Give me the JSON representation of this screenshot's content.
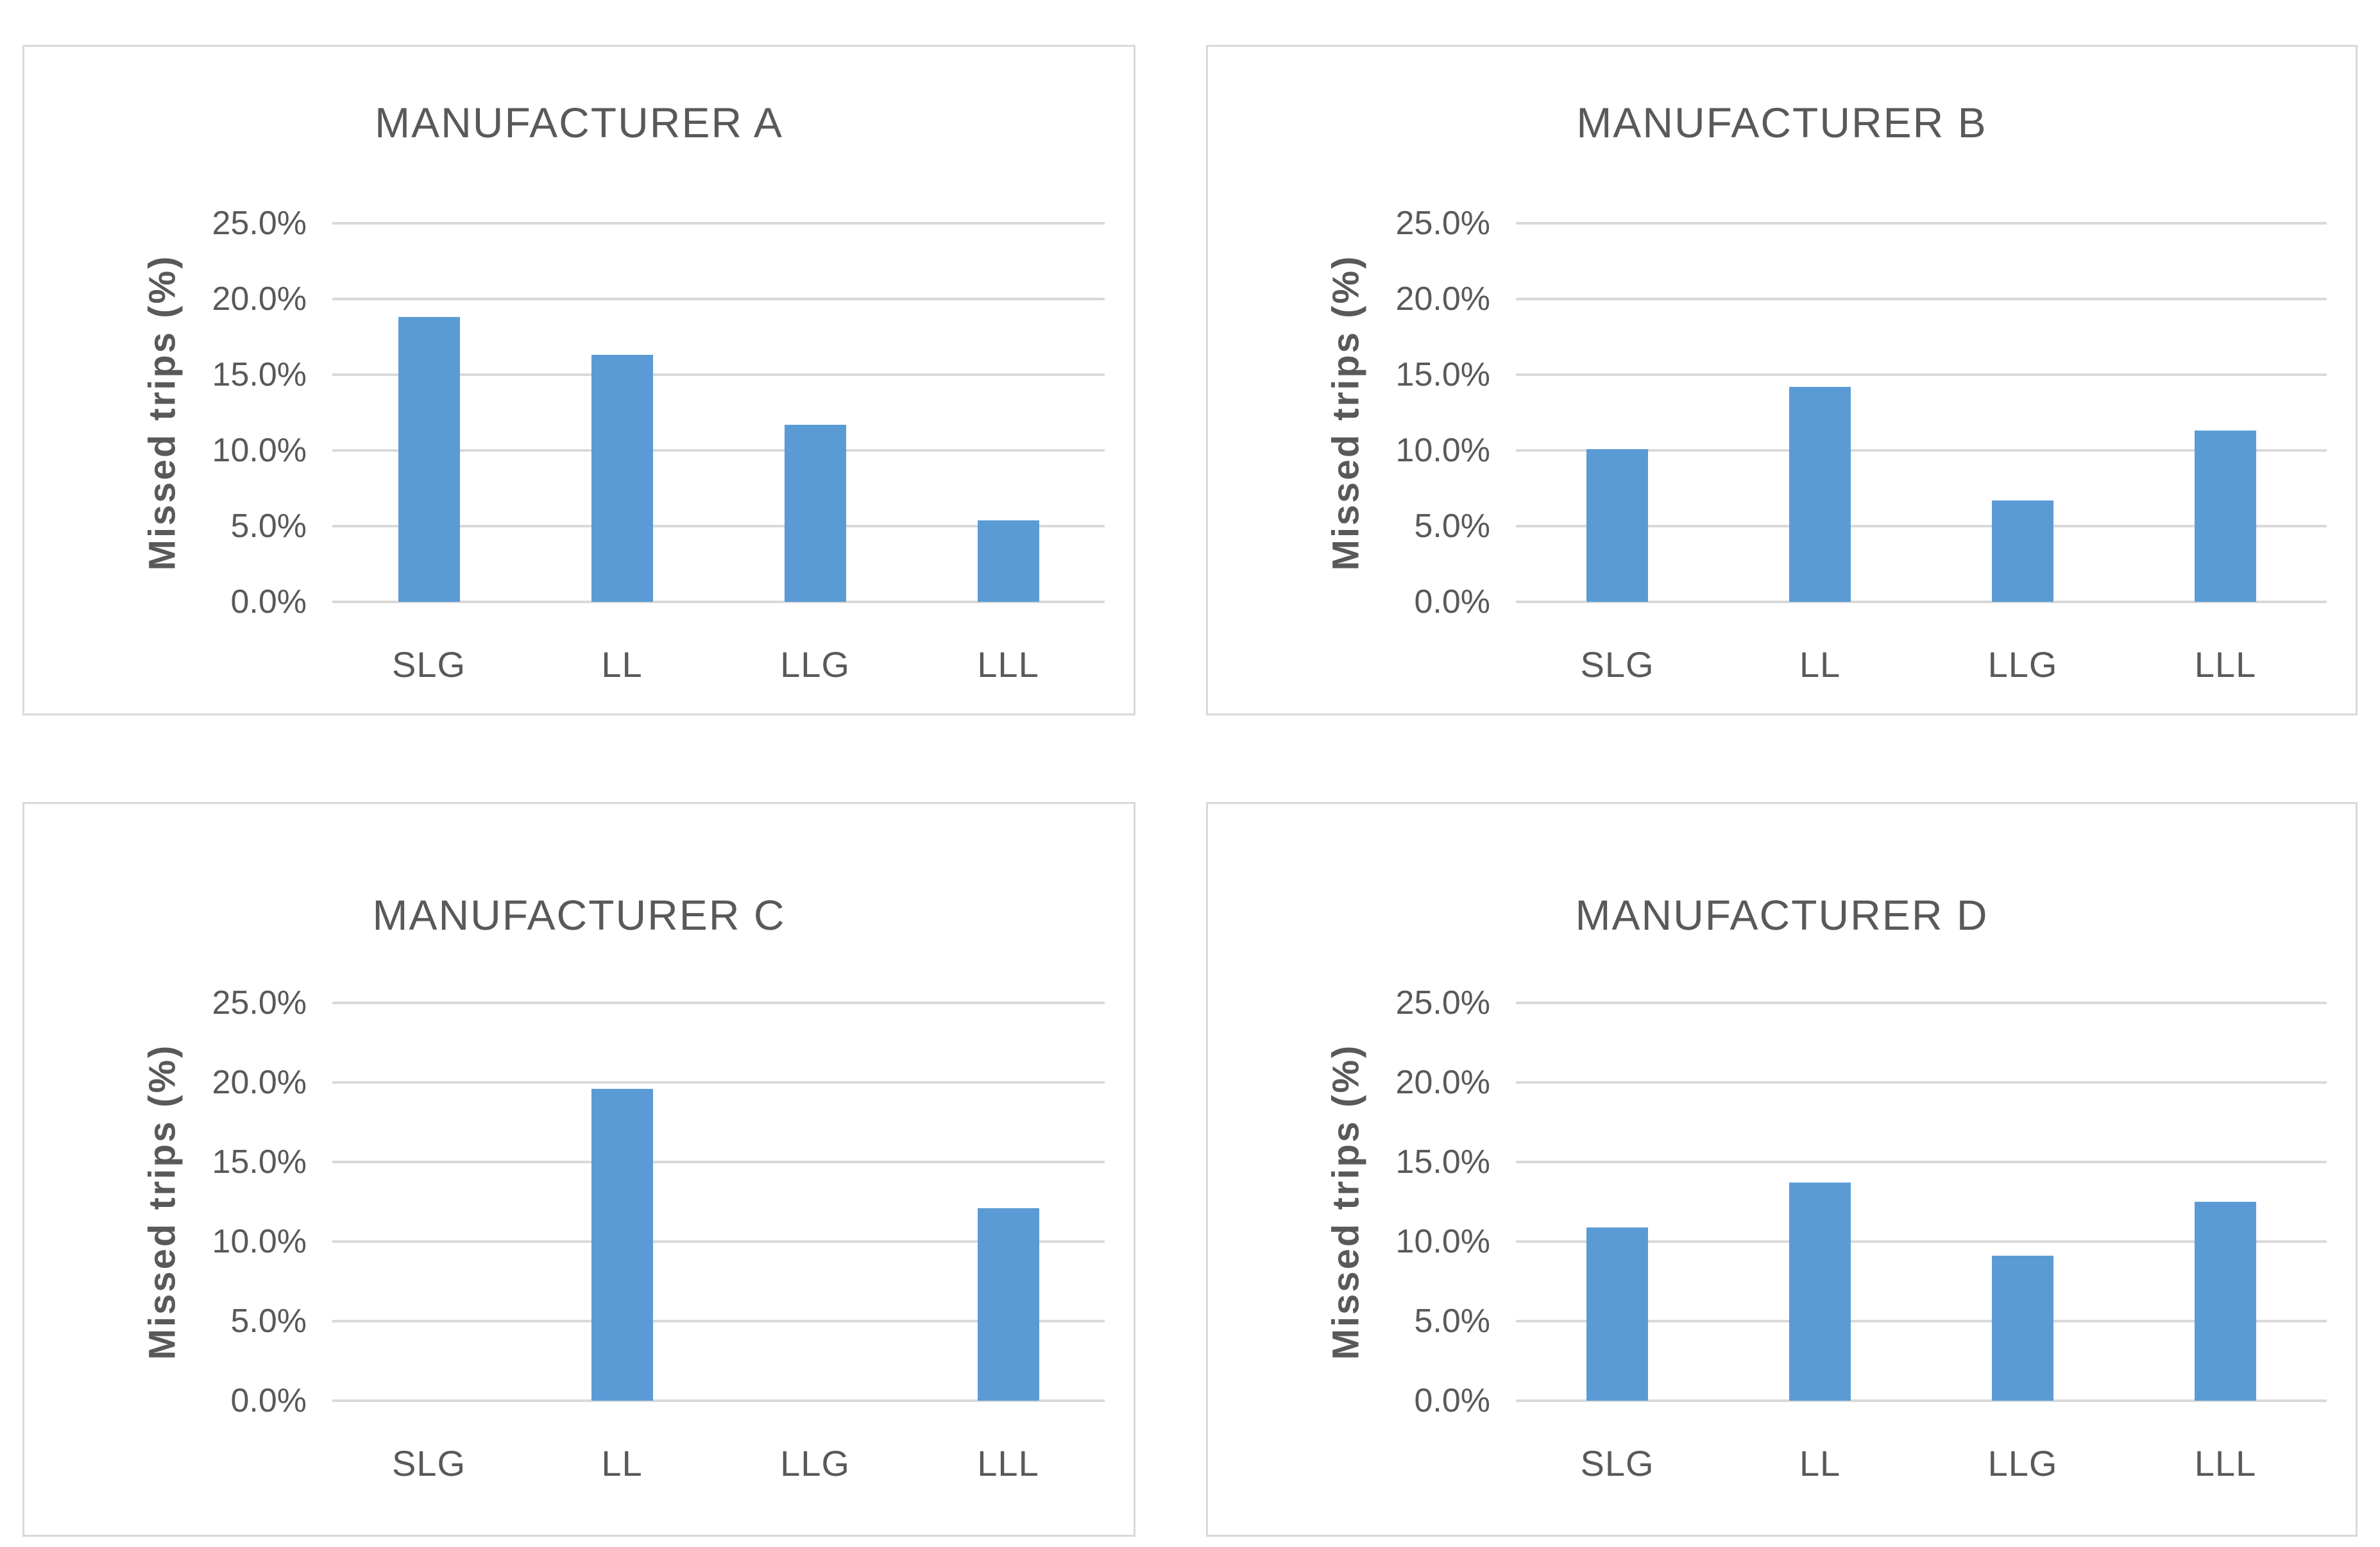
{
  "page": {
    "background": "#ffffff"
  },
  "style": {
    "bar_color": "#5b9bd5",
    "grid_color": "#d9d9d9",
    "text_color": "#595959",
    "panel_border_color": "#d9d9d9"
  },
  "chart_data": [
    {
      "type": "bar",
      "title": "MANUFACTURER A",
      "ylabel": "Missed trips (%)",
      "xlabel": "",
      "categories": [
        "SLG",
        "LL",
        "LLG",
        "LLL"
      ],
      "values": [
        18.8,
        16.3,
        11.7,
        5.4
      ],
      "ylim": [
        0,
        25
      ],
      "ytick_step": 5,
      "yticklabels": [
        "0.0%",
        "5.0%",
        "10.0%",
        "15.0%",
        "20.0%",
        "25.0%"
      ],
      "grid": true,
      "legend": false
    },
    {
      "type": "bar",
      "title": "MANUFACTURER B",
      "ylabel": "Missed trips (%)",
      "xlabel": "",
      "categories": [
        "SLG",
        "LL",
        "LLG",
        "LLL"
      ],
      "values": [
        10.1,
        14.2,
        6.7,
        11.3
      ],
      "ylim": [
        0,
        25
      ],
      "ytick_step": 5,
      "yticklabels": [
        "0.0%",
        "5.0%",
        "10.0%",
        "15.0%",
        "20.0%",
        "25.0%"
      ],
      "grid": true,
      "legend": false
    },
    {
      "type": "bar",
      "title": "MANUFACTURER C",
      "ylabel": "Missed trips (%)",
      "xlabel": "",
      "categories": [
        "SLG",
        "LL",
        "LLG",
        "LLL"
      ],
      "values": [
        0,
        19.6,
        0,
        12.1
      ],
      "ylim": [
        0,
        25
      ],
      "ytick_step": 5,
      "yticklabels": [
        "0.0%",
        "5.0%",
        "10.0%",
        "15.0%",
        "20.0%",
        "25.0%"
      ],
      "grid": true,
      "legend": false
    },
    {
      "type": "bar",
      "title": "MANUFACTURER D",
      "ylabel": "Missed trips (%)",
      "xlabel": "",
      "categories": [
        "SLG",
        "LL",
        "LLG",
        "LLL"
      ],
      "values": [
        10.9,
        13.7,
        9.1,
        12.5
      ],
      "ylim": [
        0,
        25
      ],
      "ytick_step": 5,
      "yticklabels": [
        "0.0%",
        "5.0%",
        "10.0%",
        "15.0%",
        "20.0%",
        "25.0%"
      ],
      "grid": true,
      "legend": false
    }
  ]
}
